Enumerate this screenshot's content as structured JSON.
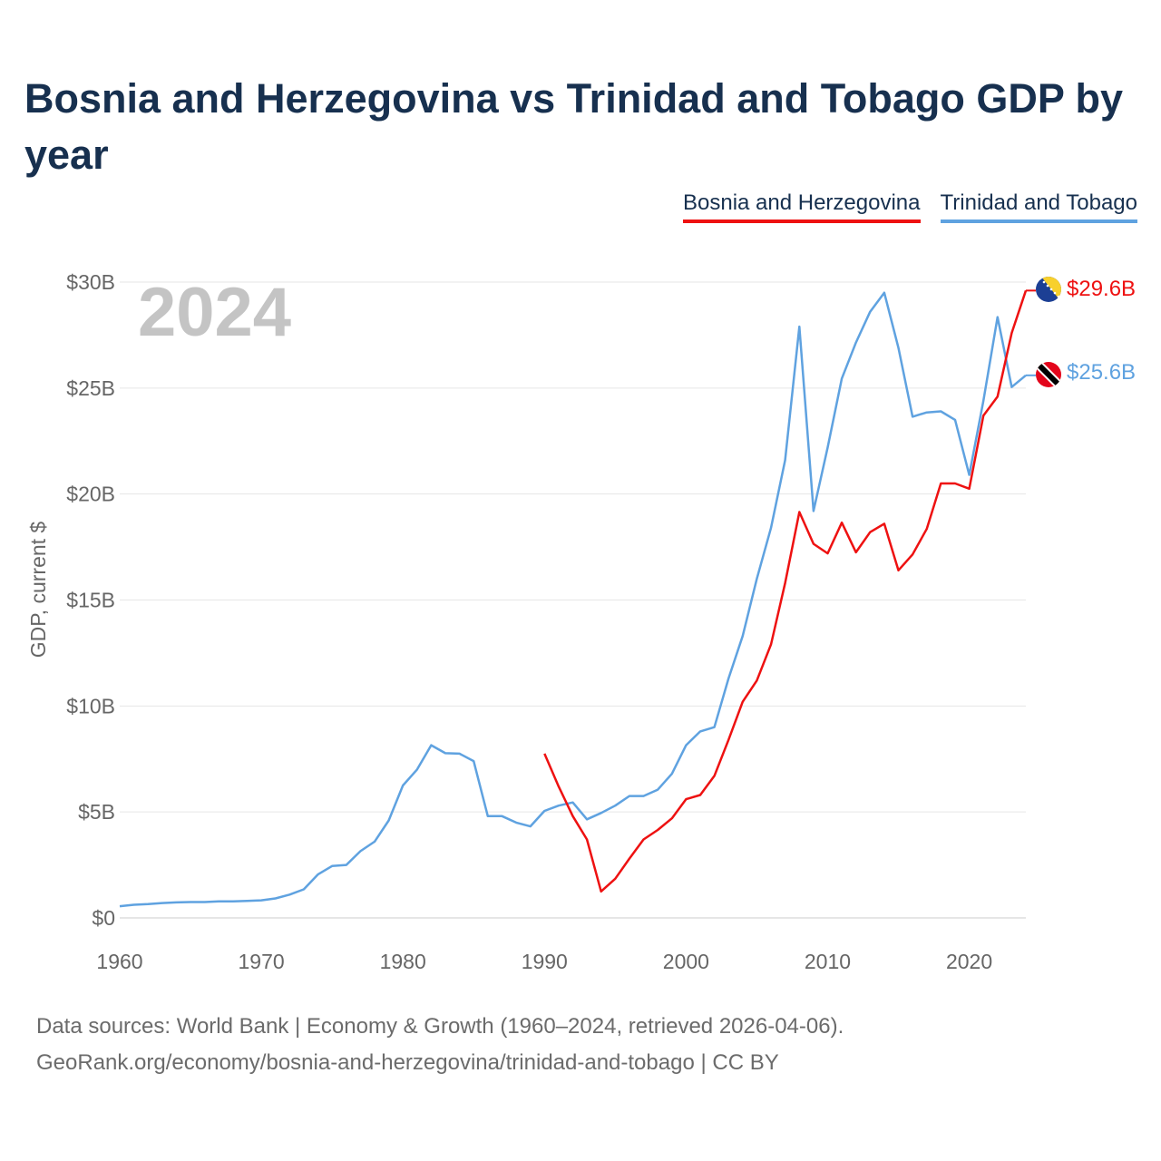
{
  "title": "Bosnia and Herzegovina vs Trinidad and Tobago GDP by year",
  "year_label": "2024",
  "sources": {
    "line1": "Data sources: World Bank | Economy & Growth (1960–2024, retrieved 2026-04-06).",
    "line2": "GeoRank.org/economy/bosnia-and-herzegovina/trinidad-and-tobago | CC BY"
  },
  "colors": {
    "bosnia": "#ee1111",
    "trinidad": "#5fa2e0",
    "title": "#17304f",
    "grid": "#e6e6e6",
    "axis_text": "#666666"
  },
  "chart_data": {
    "type": "line",
    "title": "Bosnia and Herzegovina vs Trinidad and Tobago GDP by year",
    "ylabel": "GDP, current $",
    "xlabel": "",
    "xlim": [
      1960,
      2024
    ],
    "ylim": [
      0,
      30
    ],
    "x_ticks": [
      {
        "value": 1960,
        "label": "1960"
      },
      {
        "value": 1970,
        "label": "1970"
      },
      {
        "value": 1980,
        "label": "1980"
      },
      {
        "value": 1990,
        "label": "1990"
      },
      {
        "value": 2000,
        "label": "2000"
      },
      {
        "value": 2010,
        "label": "2010"
      },
      {
        "value": 2020,
        "label": "2020"
      }
    ],
    "y_ticks": [
      {
        "value": 0,
        "label": "$0"
      },
      {
        "value": 5,
        "label": "$5B"
      },
      {
        "value": 10,
        "label": "$10B"
      },
      {
        "value": 15,
        "label": "$15B"
      },
      {
        "value": 20,
        "label": "$20B"
      },
      {
        "value": 25,
        "label": "$25B"
      },
      {
        "value": 30,
        "label": "$30B"
      }
    ],
    "grid": true,
    "legend_position": "top-right",
    "series": [
      {
        "key": "bosnia",
        "name": "Bosnia and Herzegovina",
        "color": "#ee1111",
        "end_label": "$29.6B",
        "flag_icon": "bosnia-flag-icon",
        "x": [
          1990,
          1991,
          1992,
          1993,
          1994,
          1995,
          1996,
          1997,
          1998,
          1999,
          2000,
          2001,
          2002,
          2003,
          2004,
          2005,
          2006,
          2007,
          2008,
          2009,
          2010,
          2011,
          2012,
          2013,
          2014,
          2015,
          2016,
          2017,
          2018,
          2019,
          2020,
          2021,
          2022,
          2023,
          2024
        ],
        "values": [
          7.75,
          6.2,
          4.8,
          3.7,
          1.25,
          1.85,
          2.8,
          3.7,
          4.15,
          4.7,
          5.6,
          5.8,
          6.7,
          8.4,
          10.2,
          11.2,
          12.9,
          15.8,
          19.15,
          17.65,
          17.2,
          18.65,
          17.25,
          18.2,
          18.6,
          16.4,
          17.15,
          18.35,
          20.5,
          20.5,
          20.25,
          23.7,
          24.6,
          27.6,
          29.6
        ]
      },
      {
        "key": "trinidad",
        "name": "Trinidad and Tobago",
        "color": "#5fa2e0",
        "end_label": "$25.6B",
        "flag_icon": "trinidad-flag-icon",
        "x": [
          1960,
          1961,
          1962,
          1963,
          1964,
          1965,
          1966,
          1967,
          1968,
          1969,
          1970,
          1971,
          1972,
          1973,
          1974,
          1975,
          1976,
          1977,
          1978,
          1979,
          1980,
          1981,
          1982,
          1983,
          1984,
          1985,
          1986,
          1987,
          1988,
          1989,
          1990,
          1991,
          1992,
          1993,
          1994,
          1995,
          1996,
          1997,
          1998,
          1999,
          2000,
          2001,
          2002,
          2003,
          2004,
          2005,
          2006,
          2007,
          2008,
          2009,
          2010,
          2011,
          2012,
          2013,
          2014,
          2015,
          2016,
          2017,
          2018,
          2019,
          2020,
          2021,
          2022,
          2023,
          2024
        ],
        "values": [
          0.55,
          0.62,
          0.65,
          0.7,
          0.73,
          0.75,
          0.75,
          0.78,
          0.78,
          0.8,
          0.83,
          0.92,
          1.1,
          1.35,
          2.05,
          2.45,
          2.5,
          3.15,
          3.6,
          4.6,
          6.25,
          7.0,
          8.15,
          7.77,
          7.75,
          7.4,
          4.8,
          4.8,
          4.5,
          4.32,
          5.05,
          5.3,
          5.45,
          4.65,
          4.95,
          5.3,
          5.75,
          5.75,
          6.05,
          6.8,
          8.15,
          8.8,
          9.0,
          11.3,
          13.3,
          16.0,
          18.4,
          21.6,
          27.9,
          19.2,
          22.2,
          25.45,
          27.15,
          28.6,
          29.5,
          26.9,
          23.65,
          23.85,
          23.9,
          23.5,
          20.9,
          24.4,
          28.35,
          25.05,
          25.6
        ]
      }
    ]
  }
}
